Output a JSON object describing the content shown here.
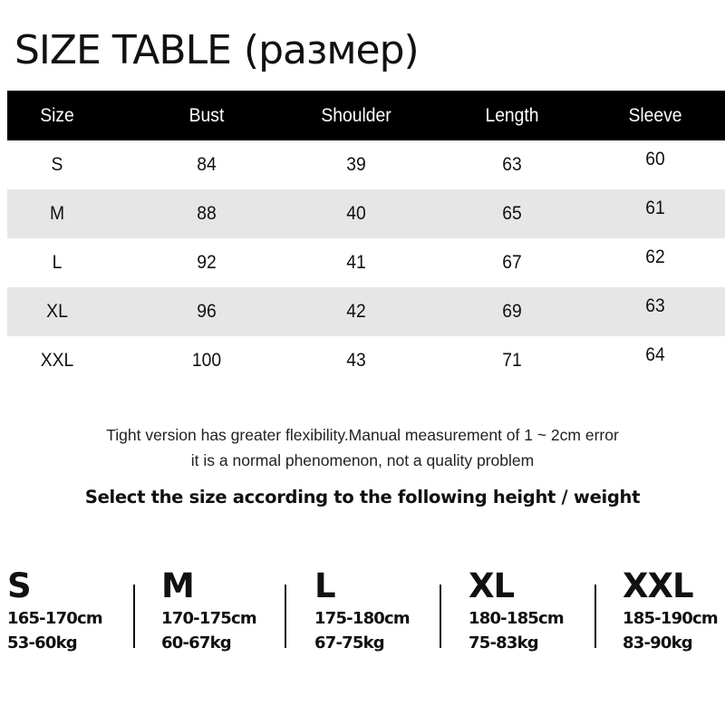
{
  "title": {
    "main": "SIZE TABLE",
    "russian": "(размер)"
  },
  "table": {
    "headers": [
      "Size",
      "Bust",
      "Shoulder",
      "Length",
      "Sleeve"
    ],
    "rows": [
      [
        "S",
        "84",
        "39",
        "63",
        "60"
      ],
      [
        "M",
        "88",
        "40",
        "65",
        "61"
      ],
      [
        "L",
        "92",
        "41",
        "67",
        "62"
      ],
      [
        "XL",
        "96",
        "42",
        "69",
        "63"
      ],
      [
        "XXL",
        "100",
        "43",
        "71",
        "64"
      ]
    ]
  },
  "notes": {
    "line1": "Tight version has greater flexibility.Manual measurement of 1 ~ 2cm error",
    "line2": "it is a normal phenomenon, not a quality problem",
    "select": "Select the size according to the following height / weight"
  },
  "height_weight": [
    {
      "size": "S",
      "height": "165-170cm",
      "weight": "53-60kg"
    },
    {
      "size": "M",
      "height": "170-175cm",
      "weight": "60-67kg"
    },
    {
      "size": "L",
      "height": "175-180cm",
      "weight": "67-75kg"
    },
    {
      "size": "XL",
      "height": "180-185cm",
      "weight": "75-83kg"
    },
    {
      "size": "XXL",
      "height": "185-190cm",
      "weight": "83-90kg"
    }
  ]
}
